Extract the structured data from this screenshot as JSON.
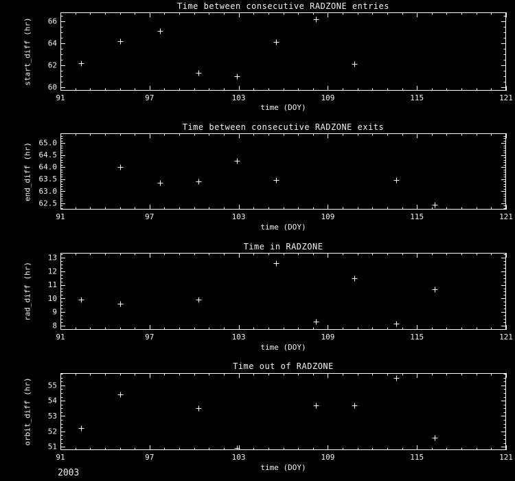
{
  "page": {
    "year_label": "2003"
  },
  "chart_data": [
    {
      "type": "scatter",
      "title": "Time between consecutive RADZONE entries",
      "xlabel": "time (DOY)",
      "ylabel": "start_diff (hr)",
      "marker": "plus",
      "grid": false,
      "legend": "none",
      "xlim": [
        91,
        121
      ],
      "ylim": [
        59.7,
        66.8
      ],
      "xticks": [
        91,
        97,
        103,
        109,
        115,
        121
      ],
      "xtick_labels": [
        "91",
        "97",
        "103",
        "109",
        "115",
        "121"
      ],
      "x_minor": 1,
      "yticks": [
        60,
        62,
        64,
        66
      ],
      "ytick_labels": [
        "60",
        "62",
        "64",
        "66"
      ],
      "y_minor": 0.5,
      "points": {
        "x": [
          92.4,
          95.0,
          97.7,
          100.3,
          102.9,
          105.5,
          108.2,
          110.8
        ],
        "y": [
          62.2,
          64.2,
          65.1,
          61.3,
          61.0,
          64.1,
          66.2,
          62.1
        ]
      }
    },
    {
      "type": "scatter",
      "title": "Time between consecutive RADZONE exits",
      "xlabel": "time (DOY)",
      "ylabel": "end_diff (hr)",
      "marker": "plus",
      "grid": false,
      "legend": "none",
      "xlim": [
        91,
        121
      ],
      "ylim": [
        62.24,
        65.4
      ],
      "xticks": [
        91,
        97,
        103,
        109,
        115,
        121
      ],
      "xtick_labels": [
        "91",
        "97",
        "103",
        "109",
        "115",
        "121"
      ],
      "x_minor": 1,
      "yticks": [
        62.5,
        63.0,
        63.5,
        64.0,
        64.5,
        65.0
      ],
      "ytick_labels": [
        "62.5",
        "63.0",
        "63.5",
        "64.0",
        "64.5",
        "65.0"
      ],
      "y_minor": 0.1,
      "points": {
        "x": [
          95.0,
          97.7,
          100.3,
          102.9,
          105.5,
          113.6,
          116.2
        ],
        "y": [
          64.0,
          63.35,
          63.4,
          64.25,
          63.45,
          63.45,
          62.45
        ]
      }
    },
    {
      "type": "scatter",
      "title": "Time in RADZONE",
      "xlabel": "time (DOY)",
      "ylabel": "rad_diff (hr)",
      "marker": "plus",
      "grid": false,
      "legend": "none",
      "xlim": [
        91,
        121
      ],
      "ylim": [
        7.7,
        13.35
      ],
      "xticks": [
        91,
        97,
        103,
        109,
        115,
        121
      ],
      "xtick_labels": [
        "91",
        "97",
        "103",
        "109",
        "115",
        "121"
      ],
      "x_minor": 1,
      "yticks": [
        8,
        9,
        10,
        11,
        12,
        13
      ],
      "ytick_labels": [
        "8",
        "9",
        "10",
        "11",
        "12",
        "13"
      ],
      "y_minor": 0.25,
      "points": {
        "x": [
          92.4,
          95.0,
          100.3,
          105.5,
          108.2,
          110.8,
          113.6,
          116.2
        ],
        "y": [
          9.9,
          9.6,
          9.9,
          12.6,
          8.3,
          11.5,
          8.15,
          10.7
        ]
      }
    },
    {
      "type": "scatter",
      "title": "Time out of RADZONE",
      "xlabel": "time (DOY)",
      "ylabel": "orbit_diff (hr)",
      "marker": "plus",
      "grid": false,
      "legend": "none",
      "xlim": [
        91,
        121
      ],
      "ylim": [
        50.78,
        55.8
      ],
      "xticks": [
        91,
        97,
        103,
        109,
        115,
        121
      ],
      "xtick_labels": [
        "91",
        "97",
        "103",
        "109",
        "115",
        "121"
      ],
      "x_minor": 1,
      "yticks": [
        51,
        52,
        53,
        54,
        55
      ],
      "ytick_labels": [
        "51",
        "52",
        "53",
        "54",
        "55"
      ],
      "y_minor": 0.25,
      "points": {
        "x": [
          92.4,
          95.0,
          100.3,
          102.9,
          108.2,
          110.8,
          113.6,
          116.2
        ],
        "y": [
          52.2,
          54.4,
          53.5,
          50.9,
          53.7,
          53.7,
          55.5,
          51.6
        ]
      }
    }
  ]
}
